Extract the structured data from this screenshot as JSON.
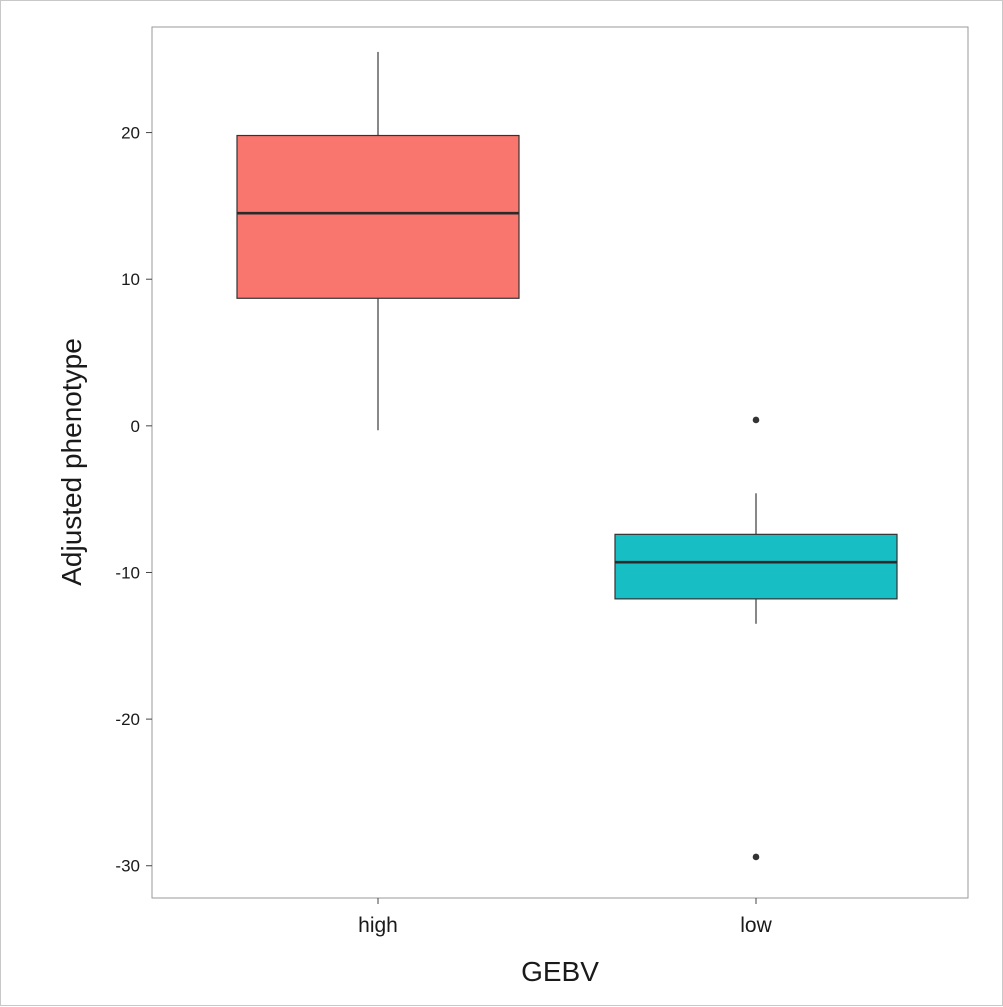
{
  "chart_data": {
    "type": "box",
    "xlabel": "GEBV",
    "ylabel": "Adjusted phenotype",
    "categories": [
      "high",
      "low"
    ],
    "ylim": [
      -32.2,
      27.2
    ],
    "yticks": [
      -30,
      -20,
      -10,
      0,
      10,
      20
    ],
    "ytick_labels": [
      "-30",
      "-20",
      "-10",
      "0",
      "10",
      "20"
    ],
    "grid": false,
    "legend": "none",
    "boxes": [
      {
        "category": "high",
        "whisker_low": -0.3,
        "q1": 8.7,
        "median": 14.5,
        "q3": 19.8,
        "whisker_high": 25.5,
        "outliers": [],
        "fill": "#f8766d"
      },
      {
        "category": "low",
        "whisker_low": -13.5,
        "q1": -11.8,
        "median": -9.3,
        "q3": -7.4,
        "whisker_high": -4.6,
        "outliers": [
          0.4,
          -29.4
        ],
        "fill": "#17bfc4"
      }
    ]
  }
}
